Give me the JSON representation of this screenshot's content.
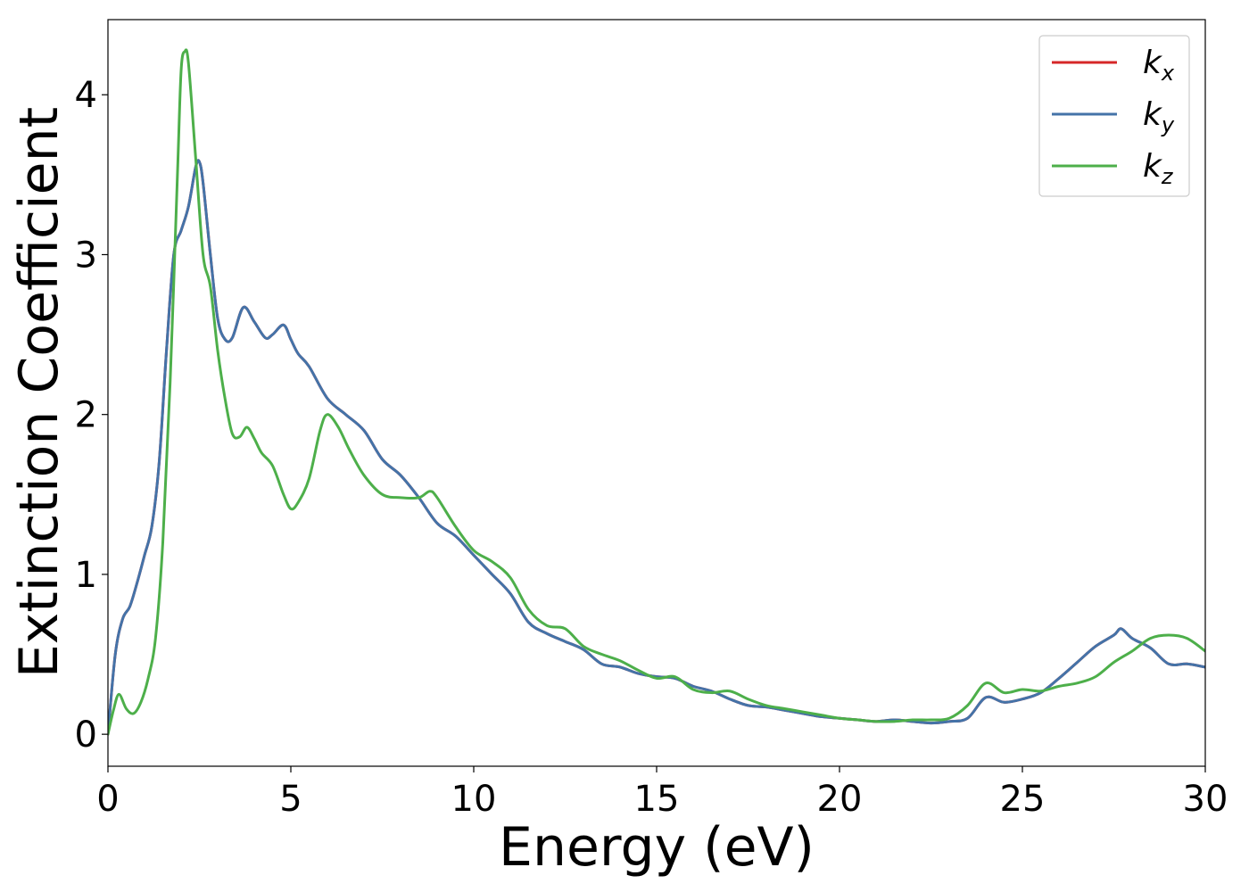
{
  "chart_data": {
    "type": "line",
    "xlabel": "Energy (eV)",
    "ylabel": "Extinction Coefficient",
    "xlim": [
      0,
      30
    ],
    "ylim": [
      -0.2,
      4.47
    ],
    "xticks": [
      0,
      5,
      10,
      15,
      20,
      25,
      30
    ],
    "yticks": [
      0,
      1,
      2,
      3,
      4
    ],
    "grid": false,
    "legend_position": "top-right",
    "series": [
      {
        "name": "k_x",
        "label_main": "k",
        "label_sub": "x",
        "color": "#d62728",
        "x": [
          0,
          0.2,
          0.4,
          0.6,
          0.8,
          1.0,
          1.2,
          1.4,
          1.6,
          1.8,
          2.0,
          2.2,
          2.4,
          2.5,
          2.6,
          2.8,
          3.0,
          3.2,
          3.4,
          3.7,
          4.0,
          4.3,
          4.5,
          4.8,
          5.0,
          5.2,
          5.5,
          6.0,
          6.5,
          7.0,
          7.5,
          8.0,
          8.5,
          9.0,
          9.5,
          10.0,
          10.5,
          11.0,
          11.5,
          12.0,
          12.5,
          13.0,
          13.5,
          14.0,
          14.5,
          15.0,
          15.5,
          16.0,
          16.5,
          17.0,
          17.5,
          18.0,
          18.5,
          19.0,
          19.5,
          20.0,
          20.5,
          21.0,
          21.5,
          22.0,
          22.5,
          23.0,
          23.5,
          24.0,
          24.5,
          25.0,
          25.5,
          26.0,
          26.5,
          27.0,
          27.5,
          27.7,
          28.0,
          28.5,
          29.0,
          29.5,
          30.0
        ],
        "y": [
          0.0,
          0.5,
          0.72,
          0.8,
          0.95,
          1.12,
          1.3,
          1.7,
          2.4,
          3.0,
          3.15,
          3.3,
          3.55,
          3.58,
          3.45,
          3.0,
          2.6,
          2.47,
          2.48,
          2.67,
          2.58,
          2.48,
          2.5,
          2.56,
          2.47,
          2.38,
          2.3,
          2.1,
          2.0,
          1.9,
          1.72,
          1.62,
          1.48,
          1.32,
          1.24,
          1.12,
          1.0,
          0.88,
          0.7,
          0.63,
          0.58,
          0.53,
          0.44,
          0.42,
          0.38,
          0.36,
          0.35,
          0.3,
          0.27,
          0.22,
          0.18,
          0.17,
          0.15,
          0.13,
          0.11,
          0.1,
          0.09,
          0.08,
          0.09,
          0.08,
          0.07,
          0.08,
          0.1,
          0.23,
          0.2,
          0.22,
          0.26,
          0.35,
          0.45,
          0.55,
          0.62,
          0.66,
          0.6,
          0.54,
          0.44,
          0.44,
          0.42
        ]
      },
      {
        "name": "k_y",
        "label_main": "k",
        "label_sub": "y",
        "color": "#4473a8",
        "x": [
          0,
          0.2,
          0.4,
          0.6,
          0.8,
          1.0,
          1.2,
          1.4,
          1.6,
          1.8,
          2.0,
          2.2,
          2.4,
          2.5,
          2.6,
          2.8,
          3.0,
          3.2,
          3.4,
          3.7,
          4.0,
          4.3,
          4.5,
          4.8,
          5.0,
          5.2,
          5.5,
          6.0,
          6.5,
          7.0,
          7.5,
          8.0,
          8.5,
          9.0,
          9.5,
          10.0,
          10.5,
          11.0,
          11.5,
          12.0,
          12.5,
          13.0,
          13.5,
          14.0,
          14.5,
          15.0,
          15.5,
          16.0,
          16.5,
          17.0,
          17.5,
          18.0,
          18.5,
          19.0,
          19.5,
          20.0,
          20.5,
          21.0,
          21.5,
          22.0,
          22.5,
          23.0,
          23.5,
          24.0,
          24.5,
          25.0,
          25.5,
          26.0,
          26.5,
          27.0,
          27.5,
          27.7,
          28.0,
          28.5,
          29.0,
          29.5,
          30.0
        ],
        "y": [
          0.0,
          0.5,
          0.72,
          0.8,
          0.95,
          1.12,
          1.3,
          1.7,
          2.4,
          3.0,
          3.15,
          3.3,
          3.55,
          3.58,
          3.45,
          3.0,
          2.6,
          2.47,
          2.48,
          2.67,
          2.58,
          2.48,
          2.5,
          2.56,
          2.47,
          2.38,
          2.3,
          2.1,
          2.0,
          1.9,
          1.72,
          1.62,
          1.48,
          1.32,
          1.24,
          1.12,
          1.0,
          0.88,
          0.7,
          0.63,
          0.58,
          0.53,
          0.44,
          0.42,
          0.38,
          0.36,
          0.35,
          0.3,
          0.27,
          0.22,
          0.18,
          0.17,
          0.15,
          0.13,
          0.11,
          0.1,
          0.09,
          0.08,
          0.09,
          0.08,
          0.07,
          0.08,
          0.1,
          0.23,
          0.2,
          0.22,
          0.26,
          0.35,
          0.45,
          0.55,
          0.62,
          0.66,
          0.6,
          0.54,
          0.44,
          0.44,
          0.42
        ]
      },
      {
        "name": "k_z",
        "label_main": "k",
        "label_sub": "z",
        "color": "#4daf4a",
        "x": [
          0,
          0.15,
          0.3,
          0.5,
          0.7,
          0.9,
          1.1,
          1.3,
          1.5,
          1.7,
          1.9,
          2.0,
          2.1,
          2.2,
          2.4,
          2.6,
          2.8,
          3.0,
          3.2,
          3.4,
          3.6,
          3.8,
          4.0,
          4.2,
          4.5,
          4.8,
          5.0,
          5.2,
          5.5,
          5.8,
          6.0,
          6.3,
          6.6,
          7.0,
          7.5,
          8.0,
          8.5,
          8.8,
          9.0,
          9.5,
          10.0,
          10.5,
          11.0,
          11.5,
          12.0,
          12.5,
          13.0,
          13.5,
          14.0,
          14.5,
          15.0,
          15.5,
          16.0,
          16.5,
          17.0,
          17.5,
          18.0,
          18.5,
          19.0,
          19.5,
          20.0,
          20.5,
          21.0,
          21.5,
          22.0,
          22.5,
          23.0,
          23.5,
          24.0,
          24.5,
          25.0,
          25.5,
          26.0,
          26.5,
          27.0,
          27.5,
          28.0,
          28.5,
          29.0,
          29.5,
          30.0
        ],
        "y": [
          0.0,
          0.15,
          0.25,
          0.16,
          0.13,
          0.2,
          0.35,
          0.6,
          1.2,
          2.2,
          3.5,
          4.15,
          4.27,
          4.2,
          3.6,
          3.0,
          2.8,
          2.4,
          2.1,
          1.88,
          1.86,
          1.92,
          1.85,
          1.76,
          1.68,
          1.5,
          1.41,
          1.45,
          1.6,
          1.9,
          2.0,
          1.92,
          1.78,
          1.62,
          1.5,
          1.48,
          1.48,
          1.52,
          1.48,
          1.3,
          1.15,
          1.08,
          0.98,
          0.78,
          0.68,
          0.66,
          0.55,
          0.5,
          0.46,
          0.4,
          0.35,
          0.36,
          0.28,
          0.26,
          0.27,
          0.22,
          0.18,
          0.16,
          0.14,
          0.12,
          0.1,
          0.09,
          0.08,
          0.08,
          0.09,
          0.09,
          0.1,
          0.18,
          0.32,
          0.26,
          0.28,
          0.27,
          0.3,
          0.32,
          0.36,
          0.45,
          0.52,
          0.6,
          0.62,
          0.6,
          0.52
        ]
      }
    ]
  }
}
